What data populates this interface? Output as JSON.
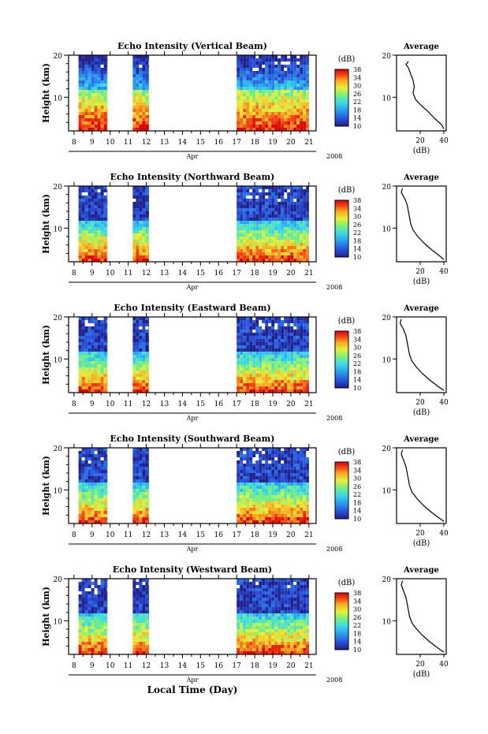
{
  "chart_data": {
    "type": "heatmap",
    "month_label": "Apr",
    "year_label": "2008",
    "x_tick_labels": [
      "8",
      "9",
      "10",
      "11",
      "12",
      "13",
      "14",
      "15",
      "16",
      "17",
      "18",
      "19",
      "20",
      "21"
    ],
    "xlabel": "Local Time (Day)",
    "ylabel": "Height (km)",
    "ylim": [
      2,
      20
    ],
    "y_tick_labels": [
      "20",
      "10"
    ],
    "y_ticks": [
      20,
      10
    ],
    "colorbar": {
      "label": "(dB)",
      "ticks": [
        "38",
        "34",
        "30",
        "26",
        "22",
        "18",
        "14",
        "10"
      ],
      "range": [
        10,
        38
      ]
    },
    "data_segments": [
      {
        "from_day": 8.25,
        "to_day": 9.85
      },
      {
        "from_day": 11.25,
        "to_day": 12.15
      },
      {
        "from_day": 17.0,
        "to_day": 21.0
      }
    ],
    "profile_xlabel": "(dB)",
    "profile_x_ticks": [
      "20",
      "40"
    ],
    "profile_xlim": [
      0,
      42
    ],
    "panels": [
      {
        "title": "Echo Intensity (Vertical Beam)",
        "avg_title": "Average",
        "average_profile": [
          [
            10,
            18.5
          ],
          [
            8,
            17.8
          ],
          [
            10,
            17
          ],
          [
            12,
            15.5
          ],
          [
            14,
            14
          ],
          [
            15,
            12.5
          ],
          [
            14,
            11
          ],
          [
            16,
            9.5
          ],
          [
            21,
            8
          ],
          [
            27,
            6.5
          ],
          [
            32,
            5
          ],
          [
            38,
            3.5
          ],
          [
            40,
            2.5
          ]
        ]
      },
      {
        "title": "Echo Intensity (Northward Beam)",
        "avg_title": "Average",
        "average_profile": [
          [
            5,
            19.5
          ],
          [
            4,
            18.5
          ],
          [
            7,
            17
          ],
          [
            9,
            15.5
          ],
          [
            10,
            14
          ],
          [
            11,
            12.5
          ],
          [
            12,
            11
          ],
          [
            14,
            9.5
          ],
          [
            18,
            8
          ],
          [
            23,
            6.5
          ],
          [
            29,
            5
          ],
          [
            36,
            3.5
          ],
          [
            40,
            2.5
          ]
        ]
      },
      {
        "title": "Echo Intensity (Eastward Beam)",
        "avg_title": "Average",
        "average_profile": [
          [
            4,
            19.5
          ],
          [
            3,
            18.5
          ],
          [
            6,
            17
          ],
          [
            8,
            15.5
          ],
          [
            9,
            14
          ],
          [
            10,
            12.5
          ],
          [
            11,
            11
          ],
          [
            13,
            9.5
          ],
          [
            17,
            8
          ],
          [
            22,
            6.5
          ],
          [
            28,
            5
          ],
          [
            35,
            3.5
          ],
          [
            40,
            2.5
          ]
        ]
      },
      {
        "title": "Echo Intensity (Southward Beam)",
        "avg_title": "Average",
        "average_profile": [
          [
            5,
            19.5
          ],
          [
            4,
            18.5
          ],
          [
            6,
            17
          ],
          [
            8,
            15.5
          ],
          [
            9,
            14
          ],
          [
            10,
            12.5
          ],
          [
            11,
            11
          ],
          [
            13,
            9.5
          ],
          [
            17,
            8
          ],
          [
            22,
            6.5
          ],
          [
            28,
            5
          ],
          [
            35,
            3.5
          ],
          [
            40,
            2.5
          ]
        ]
      },
      {
        "title": "Echo Intensity (Westward Beam)",
        "avg_title": "Average",
        "average_profile": [
          [
            5,
            19.5
          ],
          [
            4,
            18.5
          ],
          [
            6,
            17
          ],
          [
            8,
            15.5
          ],
          [
            9,
            14
          ],
          [
            10,
            12.5
          ],
          [
            11,
            11
          ],
          [
            13,
            9.5
          ],
          [
            17,
            8
          ],
          [
            22,
            6.5
          ],
          [
            28,
            5
          ],
          [
            35,
            3.5
          ],
          [
            40,
            2.5
          ]
        ]
      }
    ]
  }
}
